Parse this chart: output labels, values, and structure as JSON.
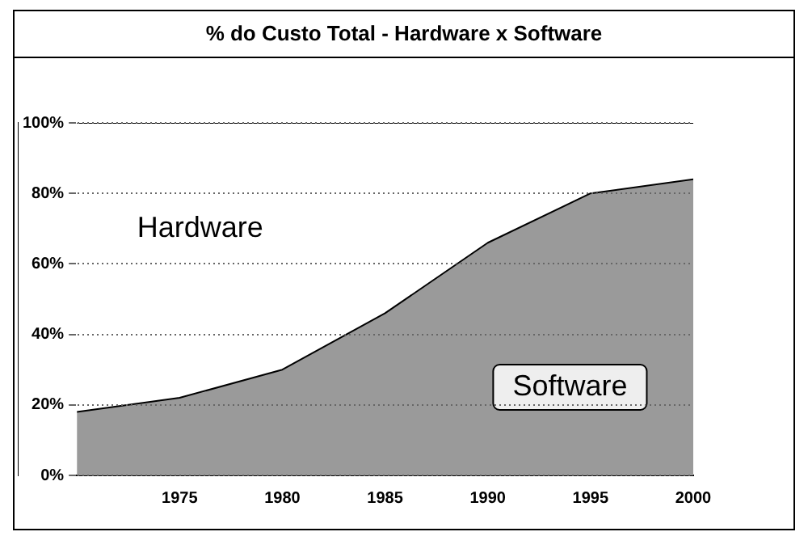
{
  "chart_data": {
    "type": "area",
    "title": "% do Custo Total - Hardware x Software",
    "x": [
      1970,
      1975,
      1980,
      1985,
      1990,
      1995,
      2000
    ],
    "stacked": true,
    "series": [
      {
        "name": "Software",
        "color": "#9a9a9a",
        "values": [
          18,
          22,
          30,
          46,
          66,
          80,
          84
        ]
      },
      {
        "name": "Hardware",
        "color": "#ffffff",
        "values": [
          82,
          78,
          70,
          54,
          34,
          20,
          16
        ]
      }
    ],
    "xlim": [
      1970,
      2000
    ],
    "xticks": [
      1975,
      1980,
      1985,
      1990,
      1995,
      2000
    ],
    "ylim": [
      0,
      100
    ],
    "yticks": [
      {
        "value": 0,
        "label": "0%"
      },
      {
        "value": 20,
        "label": "20%"
      },
      {
        "value": 40,
        "label": "40%"
      },
      {
        "value": 60,
        "label": "60%"
      },
      {
        "value": 80,
        "label": "80%"
      },
      {
        "value": 100,
        "label": "100%"
      }
    ],
    "grid": "y",
    "legend": false
  }
}
